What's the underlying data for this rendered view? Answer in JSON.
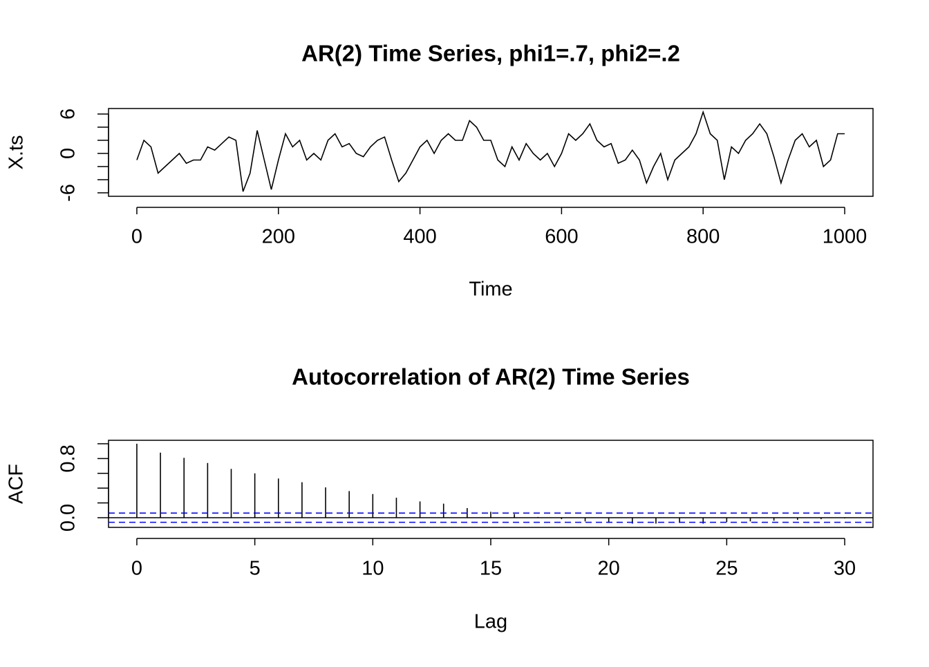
{
  "chart_data": [
    {
      "type": "line",
      "title": "AR(2) Time Series, phi1=.7, phi2=.2",
      "x_label": "Time",
      "y_label": "X.ts",
      "x": [
        0,
        10,
        20,
        30,
        40,
        50,
        60,
        70,
        80,
        90,
        100,
        110,
        120,
        130,
        140,
        150,
        160,
        170,
        180,
        190,
        200,
        210,
        220,
        230,
        240,
        250,
        260,
        270,
        280,
        290,
        300,
        310,
        320,
        330,
        340,
        350,
        360,
        370,
        380,
        390,
        400,
        410,
        420,
        430,
        440,
        450,
        460,
        470,
        480,
        490,
        500,
        510,
        520,
        530,
        540,
        550,
        560,
        570,
        580,
        590,
        600,
        610,
        620,
        630,
        640,
        650,
        660,
        670,
        680,
        690,
        700,
        710,
        720,
        730,
        740,
        750,
        760,
        770,
        780,
        790,
        800,
        810,
        820,
        830,
        840,
        850,
        860,
        870,
        880,
        890,
        900,
        910,
        920,
        930,
        940,
        950,
        960,
        970,
        980,
        990,
        1000
      ],
      "series": [
        {
          "color": "#000000",
          "values": [
            -1,
            2,
            1,
            -3,
            -2,
            -1,
            0,
            -1.5,
            -1,
            -1,
            1,
            0.5,
            1.5,
            2.5,
            2,
            -5.8,
            -3,
            3.5,
            -1,
            -5.5,
            -1,
            3,
            1,
            2,
            -1,
            0,
            -1,
            2,
            3,
            1,
            1.5,
            0,
            -0.5,
            1,
            2,
            2.5,
            -1,
            -4.3,
            -3,
            -1,
            1,
            2,
            0,
            2,
            3,
            2,
            2,
            5,
            4,
            2,
            2,
            -1,
            -2,
            1,
            -1,
            1.5,
            0,
            -1,
            0,
            -2,
            0,
            3,
            2,
            3,
            4.5,
            2,
            1,
            1.5,
            -1.5,
            -1,
            0.5,
            -1,
            -4.5,
            -2,
            0,
            -4,
            -1,
            0,
            1,
            3,
            6.3,
            3,
            2,
            -4,
            1,
            0,
            2,
            3,
            4.5,
            3,
            -0.5,
            -4.5,
            -1,
            2,
            3,
            1,
            2,
            -2,
            -1,
            3,
            3
          ]
        }
      ],
      "xlim": [
        -40,
        1040
      ],
      "ylim": [
        -6.53,
        6.84
      ],
      "xticks": [
        0,
        200,
        400,
        600,
        800,
        1000
      ],
      "yticks": [
        -6,
        0,
        6
      ],
      "yminor_ticks": [
        -4,
        -2,
        2,
        4
      ]
    },
    {
      "type": "stem",
      "title": "Autocorrelation of AR(2) Time Series",
      "x_label": "Lag",
      "y_label": "ACF",
      "x": [
        0,
        1,
        2,
        3,
        4,
        5,
        6,
        7,
        8,
        9,
        10,
        11,
        12,
        13,
        14,
        15,
        16,
        17,
        18,
        19,
        20,
        21,
        22,
        23,
        24,
        25,
        26,
        27,
        28,
        29,
        30
      ],
      "series": [
        {
          "color": "#000000",
          "values": [
            1.0,
            0.88,
            0.81,
            0.74,
            0.66,
            0.6,
            0.53,
            0.48,
            0.41,
            0.36,
            0.32,
            0.27,
            0.22,
            0.19,
            0.13,
            0.08,
            0.05,
            0.01,
            -0.02,
            -0.05,
            -0.07,
            -0.08,
            -0.08,
            -0.07,
            -0.08,
            -0.06,
            -0.05,
            -0.04,
            -0.03,
            -0.02,
            -0.01
          ]
        }
      ],
      "conf_limits": [
        0.062,
        -0.062
      ],
      "conf_color": "#0000ff",
      "xlim": [
        -1.2,
        31.2
      ],
      "ylim": [
        -0.131,
        1.047
      ],
      "xticks": [
        0,
        5,
        10,
        15,
        20,
        25,
        30
      ],
      "yticks": [
        {
          "value": 0,
          "label": "0.0"
        },
        0.8
      ],
      "yminor_ticks": [
        0.2,
        0.4,
        0.6,
        1.0
      ]
    }
  ]
}
